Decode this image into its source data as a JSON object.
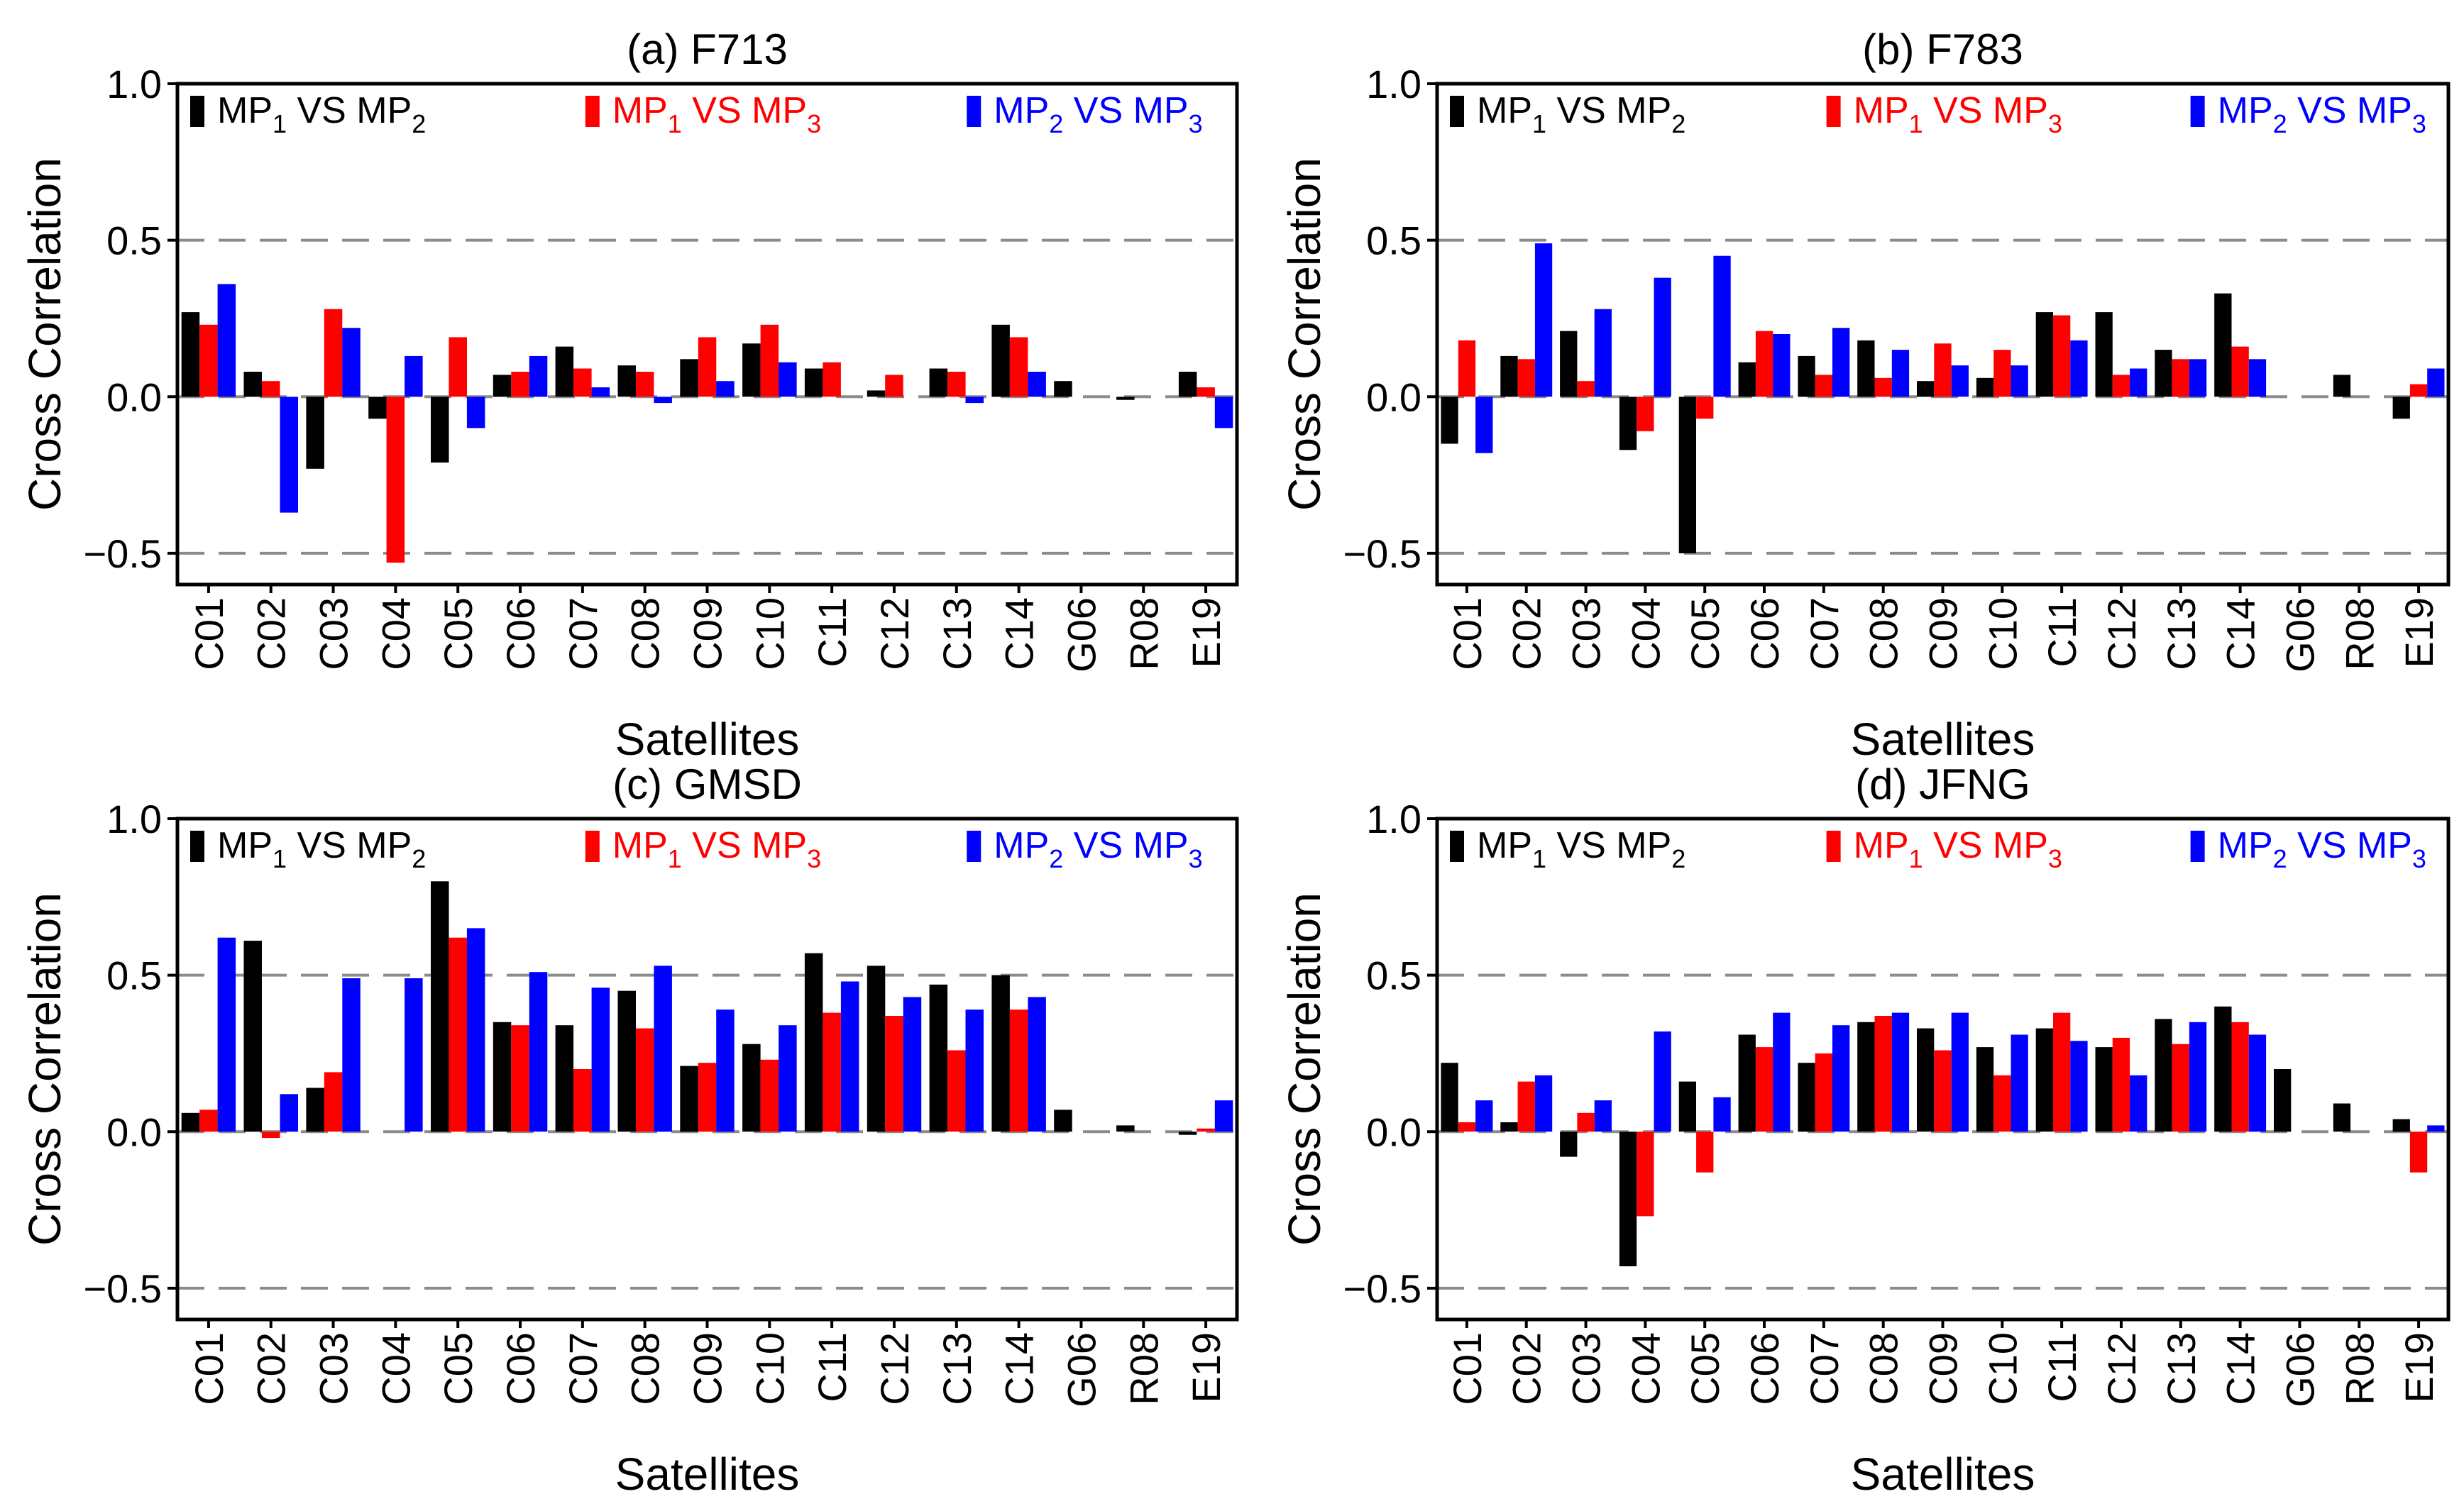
{
  "colors": {
    "mp12": "#000000",
    "mp13": "#ff0000",
    "mp23": "#0000ff",
    "grid": "#8c8c8c"
  },
  "chart_data": [
    {
      "type": "bar",
      "title": "(a) F713",
      "xlabel": "Satellites",
      "ylabel": "Cross Correlation",
      "ylim": [
        -0.6,
        1.0
      ],
      "yticks": [
        "1.0",
        "0.5",
        "0.0",
        "−0.5"
      ],
      "ytick_values": [
        1.0,
        0.5,
        0.0,
        -0.5
      ],
      "gridlines": [
        0.5,
        0.0,
        -0.5
      ],
      "categories": [
        "C01",
        "C02",
        "C03",
        "C04",
        "C05",
        "C06",
        "C07",
        "C08",
        "C09",
        "C10",
        "C11",
        "C12",
        "C13",
        "C14",
        "G06",
        "R08",
        "E19"
      ],
      "legend": [
        {
          "prefix": "MP",
          "s1": "1",
          "mid": " VS MP",
          "s2": "2",
          "color": "#000000"
        },
        {
          "prefix": "MP",
          "s1": "1",
          "mid": " VS MP",
          "s2": "3",
          "color": "#ff0000"
        },
        {
          "prefix": "MP",
          "s1": "2",
          "mid": " VS MP",
          "s2": "3",
          "color": "#0000ff"
        }
      ],
      "series": [
        {
          "name": "MP1 VS MP2",
          "color": "#000000",
          "values": [
            0.27,
            0.08,
            -0.23,
            -0.07,
            -0.21,
            0.07,
            0.16,
            0.1,
            0.12,
            0.17,
            0.09,
            0.02,
            0.09,
            0.23,
            0.05,
            -0.01,
            0.08
          ]
        },
        {
          "name": "MP1 VS MP3",
          "color": "#ff0000",
          "values": [
            0.23,
            0.05,
            0.28,
            -0.53,
            0.19,
            0.08,
            0.09,
            0.08,
            0.19,
            0.23,
            0.11,
            0.07,
            0.08,
            0.19,
            0.0,
            0.0,
            0.03
          ]
        },
        {
          "name": "MP2 VS MP3",
          "color": "#0000ff",
          "values": [
            0.36,
            -0.37,
            0.22,
            0.13,
            -0.1,
            0.13,
            0.03,
            -0.02,
            0.05,
            0.11,
            0.0,
            0.0,
            -0.02,
            0.08,
            0.0,
            0.0,
            -0.1
          ]
        }
      ]
    },
    {
      "type": "bar",
      "title": "(b) F783",
      "xlabel": "Satellites",
      "ylabel": "Cross Correlation",
      "ylim": [
        -0.6,
        1.0
      ],
      "yticks": [
        "1.0",
        "0.5",
        "0.0",
        "−0.5"
      ],
      "ytick_values": [
        1.0,
        0.5,
        0.0,
        -0.5
      ],
      "gridlines": [
        0.5,
        0.0,
        -0.5
      ],
      "categories": [
        "C01",
        "C02",
        "C03",
        "C04",
        "C05",
        "C06",
        "C07",
        "C08",
        "C09",
        "C10",
        "C11",
        "C12",
        "C13",
        "C14",
        "G06",
        "R08",
        "E19"
      ],
      "legend": [
        {
          "prefix": "MP",
          "s1": "1",
          "mid": " VS MP",
          "s2": "2",
          "color": "#000000"
        },
        {
          "prefix": "MP",
          "s1": "1",
          "mid": " VS MP",
          "s2": "3",
          "color": "#ff0000"
        },
        {
          "prefix": "MP",
          "s1": "2",
          "mid": " VS MP",
          "s2": "3",
          "color": "#0000ff"
        }
      ],
      "series": [
        {
          "name": "MP1 VS MP2",
          "color": "#000000",
          "values": [
            -0.15,
            0.13,
            0.21,
            -0.17,
            -0.5,
            0.11,
            0.13,
            0.18,
            0.05,
            0.06,
            0.27,
            0.27,
            0.15,
            0.33,
            0.0,
            0.07,
            -0.07
          ]
        },
        {
          "name": "MP1 VS MP3",
          "color": "#ff0000",
          "values": [
            0.18,
            0.12,
            0.05,
            -0.11,
            -0.07,
            0.21,
            0.07,
            0.06,
            0.17,
            0.15,
            0.26,
            0.07,
            0.12,
            0.16,
            0.0,
            0.0,
            0.04
          ]
        },
        {
          "name": "MP2 VS MP3",
          "color": "#0000ff",
          "values": [
            -0.18,
            0.49,
            0.28,
            0.38,
            0.45,
            0.2,
            0.22,
            0.15,
            0.1,
            0.1,
            0.18,
            0.09,
            0.12,
            0.12,
            0.0,
            0.0,
            0.09
          ]
        }
      ]
    },
    {
      "type": "bar",
      "title": "(c) GMSD",
      "xlabel": "Satellites",
      "ylabel": "Cross Correlation",
      "ylim": [
        -0.6,
        1.0
      ],
      "yticks": [
        "1.0",
        "0.5",
        "0.0",
        "−0.5"
      ],
      "ytick_values": [
        1.0,
        0.5,
        0.0,
        -0.5
      ],
      "gridlines": [
        0.5,
        0.0,
        -0.5
      ],
      "categories": [
        "C01",
        "C02",
        "C03",
        "C04",
        "C05",
        "C06",
        "C07",
        "C08",
        "C09",
        "C10",
        "C11",
        "C12",
        "C13",
        "C14",
        "G06",
        "R08",
        "E19"
      ],
      "legend": [
        {
          "prefix": "MP",
          "s1": "1",
          "mid": " VS MP",
          "s2": "2",
          "color": "#000000"
        },
        {
          "prefix": "MP",
          "s1": "1",
          "mid": " VS MP",
          "s2": "3",
          "color": "#ff0000"
        },
        {
          "prefix": "MP",
          "s1": "2",
          "mid": " VS MP",
          "s2": "3",
          "color": "#0000ff"
        }
      ],
      "series": [
        {
          "name": "MP1 VS MP2",
          "color": "#000000",
          "values": [
            0.06,
            0.61,
            0.14,
            0.0,
            0.8,
            0.35,
            0.34,
            0.45,
            0.21,
            0.28,
            0.57,
            0.53,
            0.47,
            0.5,
            0.07,
            0.02,
            -0.01
          ]
        },
        {
          "name": "MP1 VS MP3",
          "color": "#ff0000",
          "values": [
            0.07,
            -0.02,
            0.19,
            0.0,
            0.62,
            0.34,
            0.2,
            0.33,
            0.22,
            0.23,
            0.38,
            0.37,
            0.26,
            0.39,
            0.0,
            0.0,
            0.01
          ]
        },
        {
          "name": "MP2 VS MP3",
          "color": "#0000ff",
          "values": [
            0.62,
            0.12,
            0.49,
            0.49,
            0.65,
            0.51,
            0.46,
            0.53,
            0.39,
            0.34,
            0.48,
            0.43,
            0.39,
            0.43,
            0.0,
            0.0,
            0.1
          ]
        }
      ]
    },
    {
      "type": "bar",
      "title": "(d) JFNG",
      "xlabel": "Satellites",
      "ylabel": "Cross Correlation",
      "ylim": [
        -0.6,
        1.0
      ],
      "yticks": [
        "1.0",
        "0.5",
        "0.0",
        "−0.5"
      ],
      "ytick_values": [
        1.0,
        0.5,
        0.0,
        -0.5
      ],
      "gridlines": [
        0.5,
        0.0,
        -0.5
      ],
      "categories": [
        "C01",
        "C02",
        "C03",
        "C04",
        "C05",
        "C06",
        "C07",
        "C08",
        "C09",
        "C10",
        "C11",
        "C12",
        "C13",
        "C14",
        "G06",
        "R08",
        "E19"
      ],
      "legend": [
        {
          "prefix": "MP",
          "s1": "1",
          "mid": " VS MP",
          "s2": "2",
          "color": "#000000"
        },
        {
          "prefix": "MP",
          "s1": "1",
          "mid": " VS MP",
          "s2": "3",
          "color": "#ff0000"
        },
        {
          "prefix": "MP",
          "s1": "2",
          "mid": " VS MP",
          "s2": "3",
          "color": "#0000ff"
        }
      ],
      "series": [
        {
          "name": "MP1 VS MP2",
          "color": "#000000",
          "values": [
            0.22,
            0.03,
            -0.08,
            -0.43,
            0.16,
            0.31,
            0.22,
            0.35,
            0.33,
            0.27,
            0.33,
            0.27,
            0.36,
            0.4,
            0.2,
            0.09,
            0.04
          ]
        },
        {
          "name": "MP1 VS MP3",
          "color": "#ff0000",
          "values": [
            0.03,
            0.16,
            0.06,
            -0.27,
            -0.13,
            0.27,
            0.25,
            0.37,
            0.26,
            0.18,
            0.38,
            0.3,
            0.28,
            0.35,
            0.0,
            0.0,
            -0.13
          ]
        },
        {
          "name": "MP2 VS MP3",
          "color": "#0000ff",
          "values": [
            0.1,
            0.18,
            0.1,
            0.32,
            0.11,
            0.38,
            0.34,
            0.38,
            0.38,
            0.31,
            0.29,
            0.18,
            0.35,
            0.31,
            0.0,
            0.0,
            0.02
          ]
        }
      ]
    }
  ]
}
